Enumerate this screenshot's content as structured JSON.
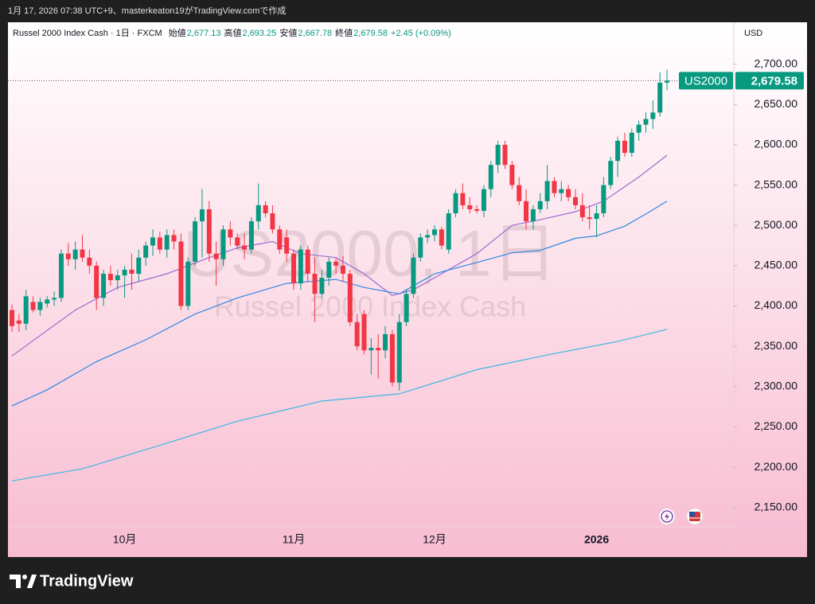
{
  "caption": "1月 17, 2026 07:38 UTC+9、masterkeaton19がTradingView.comで作成",
  "chart_data": {
    "type": "candlestick",
    "title": "Russel 2000 Index Cash · 1日 · FXCM",
    "legend": [
      {
        "label": "始値",
        "value": "2,677.13"
      },
      {
        "label": "高値",
        "value": "2,693.25"
      },
      {
        "label": "安値",
        "value": "2,667.78"
      },
      {
        "label": "終値",
        "value": "2,679.58"
      }
    ],
    "change": "+2.45 (+0.09%)",
    "watermark": [
      "US2000, 1日",
      "Russel 2000 Index Cash"
    ],
    "currency": "USD",
    "categories": [
      null,
      null,
      null,
      null,
      null,
      null,
      null,
      null,
      null,
      null,
      null,
      null,
      null,
      null,
      null,
      null,
      "10月",
      null,
      null,
      null,
      null,
      null,
      null,
      null,
      null,
      null,
      null,
      null,
      null,
      null,
      null,
      null,
      null,
      null,
      null,
      null,
      null,
      null,
      null,
      null,
      "11月",
      null,
      null,
      null,
      null,
      null,
      null,
      null,
      null,
      null,
      null,
      null,
      null,
      null,
      null,
      null,
      null,
      null,
      null,
      null,
      "12月",
      null,
      null,
      null,
      null,
      null,
      null,
      null,
      null,
      null,
      null,
      null,
      null,
      null,
      null,
      null,
      null,
      null,
      null,
      null,
      null,
      null,
      null,
      "2026",
      null,
      null,
      null,
      null,
      null,
      null,
      null,
      null,
      null,
      null
    ],
    "open": [
      2395,
      2382,
      2378,
      2405,
      2395,
      2403,
      2408,
      2410,
      2465,
      2458,
      2470,
      2460,
      2450,
      2410,
      2440,
      2432,
      2438,
      2445,
      2440,
      2460,
      2475,
      2485,
      2470,
      2488,
      2480,
      2400,
      2455,
      2505,
      2520,
      2465,
      2458,
      2495,
      2485,
      2475,
      2470,
      2505,
      2525,
      2515,
      2495,
      2485,
      2465,
      2428,
      2470,
      2440,
      2415,
      2435,
      2455,
      2450,
      2440,
      2380,
      2390,
      2345,
      2348,
      2345,
      2365,
      2305,
      2380,
      2415,
      2460,
      2485,
      2488,
      2495,
      2470,
      2515,
      2540,
      2525,
      2520,
      2518,
      2545,
      2575,
      2600,
      2575,
      2550,
      2530,
      2505,
      2520,
      2530,
      2555,
      2540,
      2545,
      2535,
      2525,
      2510,
      2508,
      2515,
      2550,
      2580,
      2605,
      2590,
      2615,
      2625,
      2632,
      2640,
      2677.13
    ],
    "high": [
      2402,
      2390,
      2420,
      2412,
      2410,
      2412,
      2418,
      2470,
      2478,
      2480,
      2488,
      2470,
      2455,
      2445,
      2450,
      2445,
      2450,
      2465,
      2470,
      2480,
      2495,
      2492,
      2495,
      2495,
      2490,
      2460,
      2510,
      2545,
      2530,
      2480,
      2500,
      2505,
      2490,
      2490,
      2510,
      2552,
      2530,
      2525,
      2500,
      2495,
      2470,
      2475,
      2475,
      2460,
      2445,
      2460,
      2460,
      2462,
      2445,
      2390,
      2395,
      2360,
      2365,
      2375,
      2370,
      2390,
      2420,
      2465,
      2490,
      2495,
      2500,
      2498,
      2520,
      2545,
      2552,
      2535,
      2525,
      2550,
      2580,
      2605,
      2605,
      2580,
      2560,
      2545,
      2525,
      2540,
      2575,
      2560,
      2555,
      2550,
      2545,
      2540,
      2525,
      2525,
      2560,
      2585,
      2610,
      2615,
      2620,
      2630,
      2640,
      2655,
      2690,
      2693.25
    ],
    "low": [
      2368,
      2368,
      2370,
      2392,
      2388,
      2398,
      2400,
      2405,
      2450,
      2445,
      2455,
      2440,
      2395,
      2400,
      2425,
      2420,
      2410,
      2420,
      2430,
      2450,
      2462,
      2465,
      2460,
      2470,
      2395,
      2395,
      2450,
      2460,
      2455,
      2425,
      2450,
      2475,
      2470,
      2458,
      2465,
      2495,
      2510,
      2490,
      2465,
      2455,
      2420,
      2420,
      2430,
      2380,
      2410,
      2425,
      2440,
      2430,
      2375,
      2345,
      2340,
      2315,
      2310,
      2335,
      2300,
      2295,
      2375,
      2410,
      2455,
      2478,
      2480,
      2470,
      2465,
      2510,
      2520,
      2515,
      2515,
      2510,
      2535,
      2565,
      2570,
      2545,
      2525,
      2495,
      2495,
      2515,
      2520,
      2535,
      2530,
      2530,
      2520,
      2505,
      2495,
      2485,
      2510,
      2545,
      2560,
      2585,
      2585,
      2605,
      2615,
      2620,
      2635,
      2667.78
    ],
    "close": [
      2375,
      2378,
      2412,
      2395,
      2405,
      2408,
      2410,
      2465,
      2458,
      2470,
      2460,
      2450,
      2410,
      2440,
      2432,
      2438,
      2445,
      2440,
      2460,
      2475,
      2485,
      2470,
      2488,
      2480,
      2400,
      2455,
      2505,
      2520,
      2465,
      2458,
      2495,
      2485,
      2475,
      2470,
      2505,
      2525,
      2515,
      2495,
      2470,
      2465,
      2428,
      2470,
      2440,
      2415,
      2435,
      2455,
      2450,
      2440,
      2380,
      2350,
      2345,
      2348,
      2345,
      2365,
      2305,
      2380,
      2415,
      2460,
      2485,
      2488,
      2495,
      2475,
      2515,
      2540,
      2525,
      2520,
      2518,
      2545,
      2575,
      2600,
      2575,
      2550,
      2530,
      2505,
      2520,
      2530,
      2555,
      2540,
      2545,
      2535,
      2525,
      2510,
      2508,
      2515,
      2550,
      2580,
      2605,
      2590,
      2615,
      2625,
      2632,
      2640,
      2677,
      2679.58
    ],
    "up_color": "#089981",
    "down_color": "#f23645",
    "lines": [
      {
        "color": "#9b6bd3",
        "x": [
          0,
          9,
          15,
          22,
          28,
          32,
          37,
          41,
          46,
          50,
          54,
          57,
          62,
          66,
          71,
          75,
          80,
          84,
          89,
          93
        ],
        "values": [
          2338,
          2395,
          2423,
          2440,
          2460,
          2472,
          2480,
          2465,
          2460,
          2440,
          2413,
          2420,
          2445,
          2465,
          2500,
          2507,
          2517,
          2530,
          2560,
          2587
        ]
      },
      {
        "color": "#2f87e0",
        "x": [
          0,
          5,
          12,
          19,
          26,
          32,
          39,
          46,
          50,
          55,
          60,
          66,
          71,
          75,
          80,
          83,
          87,
          90,
          93
        ],
        "values": [
          2276,
          2296,
          2331,
          2358,
          2390,
          2410,
          2428,
          2433,
          2423,
          2415,
          2440,
          2454,
          2466,
          2469,
          2484,
          2487,
          2499,
          2514,
          2530
        ]
      },
      {
        "color": "#3bb8e0",
        "x": [
          0,
          10,
          21,
          32,
          44,
          55,
          66,
          77,
          86,
          93
        ],
        "values": [
          2183,
          2198,
          2227,
          2257,
          2282,
          2291,
          2321,
          2341,
          2356,
          2371
        ]
      }
    ],
    "price_line": {
      "name": "US2000",
      "value": 2679.58,
      "label": "2,679.58",
      "color": "#089981"
    },
    "ylim": [
      2126,
      2752
    ],
    "yticks": [
      {
        "value": 2150,
        "label": "2,150.00"
      },
      {
        "value": 2200,
        "label": "2,200.00"
      },
      {
        "value": 2250,
        "label": "2,250.00"
      },
      {
        "value": 2300,
        "label": "2,300.00"
      },
      {
        "value": 2350,
        "label": "2,350.00"
      },
      {
        "value": 2400,
        "label": "2,400.00"
      },
      {
        "value": 2450,
        "label": "2,450.00"
      },
      {
        "value": 2500,
        "label": "2,500.00"
      },
      {
        "value": 2550,
        "label": "2,550.00"
      },
      {
        "value": 2600,
        "label": "2,600.00"
      },
      {
        "value": 2650,
        "label": "2,650.00"
      },
      {
        "value": 2700,
        "label": "2,700.00"
      }
    ]
  },
  "footer": {
    "brand": "TradingView"
  }
}
